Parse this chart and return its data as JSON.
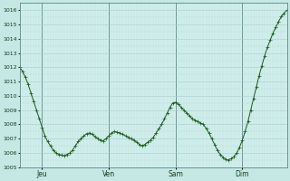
{
  "bg_color": "#c5e8e5",
  "plot_bg_color": "#d0eeec",
  "line_color": "#1a5c1a",
  "grid_color_major": "#aacccc",
  "grid_color_minor": "#bcd8d8",
  "grid_color_vert_major": "#9ababa",
  "ylim": [
    1005,
    1016.5
  ],
  "yticks": [
    1005,
    1006,
    1007,
    1008,
    1009,
    1010,
    1011,
    1012,
    1013,
    1014,
    1015,
    1016
  ],
  "day_labels": [
    "Jeu",
    "Ven",
    "Sam",
    "Dim"
  ],
  "xlim": [
    0,
    96
  ],
  "vline_positions": [
    8,
    32,
    56,
    80
  ],
  "xtick_positions": [
    8,
    32,
    56,
    80
  ],
  "pressure_values": [
    1012.0,
    1011.7,
    1011.3,
    1010.8,
    1010.2,
    1009.6,
    1009.0,
    1008.4,
    1007.8,
    1007.2,
    1006.8,
    1006.5,
    1006.2,
    1006.0,
    1005.9,
    1005.85,
    1005.8,
    1005.9,
    1006.0,
    1006.2,
    1006.5,
    1006.8,
    1007.0,
    1007.2,
    1007.35,
    1007.4,
    1007.3,
    1007.15,
    1007.0,
    1006.9,
    1006.85,
    1007.0,
    1007.2,
    1007.4,
    1007.5,
    1007.45,
    1007.4,
    1007.3,
    1007.2,
    1007.1,
    1007.0,
    1006.9,
    1006.75,
    1006.6,
    1006.5,
    1006.6,
    1006.75,
    1006.9,
    1007.1,
    1007.4,
    1007.7,
    1008.0,
    1008.4,
    1008.8,
    1009.2,
    1009.5,
    1009.55,
    1009.4,
    1009.2,
    1009.0,
    1008.8,
    1008.6,
    1008.4,
    1008.3,
    1008.2,
    1008.1,
    1008.0,
    1007.7,
    1007.4,
    1007.0,
    1006.6,
    1006.2,
    1005.9,
    1005.7,
    1005.55,
    1005.5,
    1005.6,
    1005.75,
    1006.0,
    1006.4,
    1006.9,
    1007.5,
    1008.2,
    1009.0,
    1009.8,
    1010.6,
    1011.4,
    1012.1,
    1012.8,
    1013.4,
    1013.9,
    1014.4,
    1014.8,
    1015.2,
    1015.55,
    1015.8,
    1016.0
  ]
}
